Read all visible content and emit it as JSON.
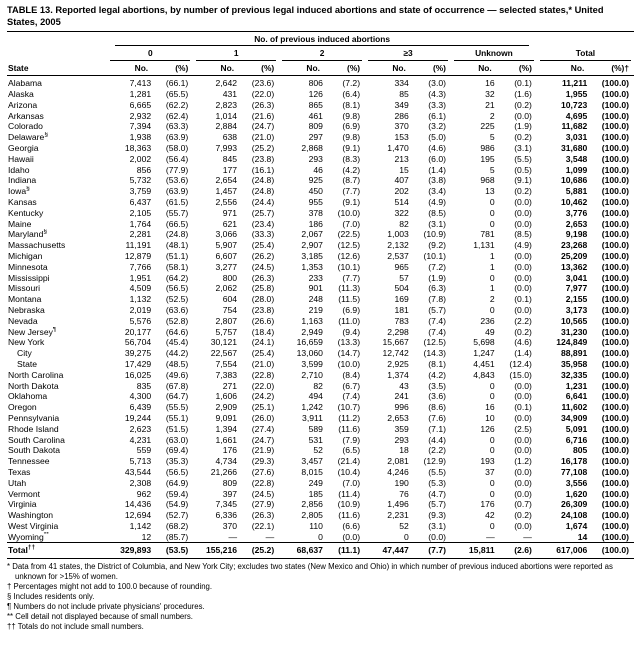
{
  "title": "TABLE 13. Reported legal abortions, by number of previous legal induced abortions and state of occurrence — selected states,* United States, 2005",
  "header": {
    "span_title": "No. of previous induced abortions",
    "state_label": "State",
    "groups": [
      "0",
      "1",
      "2",
      "≥3",
      "Unknown"
    ],
    "total_label": "Total",
    "no_label": "No.",
    "pct_label": "(%)",
    "total_pct_label": "(%)†"
  },
  "rows": [
    {
      "state": "Alabama",
      "cells": [
        "7,413",
        "(66.1)",
        "2,642",
        "(23.6)",
        "806",
        "(7.2)",
        "334",
        "(3.0)",
        "16",
        "(0.1)",
        "11,211",
        "(100.0)"
      ]
    },
    {
      "state": "Alaska",
      "cells": [
        "1,281",
        "(65.5)",
        "431",
        "(22.0)",
        "126",
        "(6.4)",
        "85",
        "(4.3)",
        "32",
        "(1.6)",
        "1,955",
        "(100.0)"
      ]
    },
    {
      "state": "Arizona",
      "cells": [
        "6,665",
        "(62.2)",
        "2,823",
        "(26.3)",
        "865",
        "(8.1)",
        "349",
        "(3.3)",
        "21",
        "(0.2)",
        "10,723",
        "(100.0)"
      ]
    },
    {
      "state": "Arkansas",
      "cells": [
        "2,932",
        "(62.4)",
        "1,014",
        "(21.6)",
        "461",
        "(9.8)",
        "286",
        "(6.1)",
        "2",
        "(0.0)",
        "4,695",
        "(100.0)"
      ]
    },
    {
      "state": "Colorado",
      "cells": [
        "7,394",
        "(63.3)",
        "2,884",
        "(24.7)",
        "809",
        "(6.9)",
        "370",
        "(3.2)",
        "225",
        "(1.9)",
        "11,682",
        "(100.0)"
      ]
    },
    {
      "state": "Delaware",
      "sup": "§",
      "cells": [
        "1,938",
        "(63.9)",
        "638",
        "(21.0)",
        "297",
        "(9.8)",
        "153",
        "(5.0)",
        "5",
        "(0.2)",
        "3,031",
        "(100.0)"
      ]
    },
    {
      "state": "Georgia",
      "cells": [
        "18,363",
        "(58.0)",
        "7,993",
        "(25.2)",
        "2,868",
        "(9.1)",
        "1,470",
        "(4.6)",
        "986",
        "(3.1)",
        "31,680",
        "(100.0)"
      ]
    },
    {
      "state": "Hawaii",
      "cells": [
        "2,002",
        "(56.4)",
        "845",
        "(23.8)",
        "293",
        "(8.3)",
        "213",
        "(6.0)",
        "195",
        "(5.5)",
        "3,548",
        "(100.0)"
      ]
    },
    {
      "state": "Idaho",
      "cells": [
        "856",
        "(77.9)",
        "177",
        "(16.1)",
        "46",
        "(4.2)",
        "15",
        "(1.4)",
        "5",
        "(0.5)",
        "1,099",
        "(100.0)"
      ]
    },
    {
      "state": "Indiana",
      "cells": [
        "5,732",
        "(53.6)",
        "2,654",
        "(24.8)",
        "925",
        "(8.7)",
        "407",
        "(3.8)",
        "968",
        "(9.1)",
        "10,686",
        "(100.0)"
      ]
    },
    {
      "state": "Iowa",
      "sup": "§",
      "cells": [
        "3,759",
        "(63.9)",
        "1,457",
        "(24.8)",
        "450",
        "(7.7)",
        "202",
        "(3.4)",
        "13",
        "(0.2)",
        "5,881",
        "(100.0)"
      ]
    },
    {
      "state": "Kansas",
      "cells": [
        "6,437",
        "(61.5)",
        "2,556",
        "(24.4)",
        "955",
        "(9.1)",
        "514",
        "(4.9)",
        "0",
        "(0.0)",
        "10,462",
        "(100.0)"
      ]
    },
    {
      "state": "Kentucky",
      "cells": [
        "2,105",
        "(55.7)",
        "971",
        "(25.7)",
        "378",
        "(10.0)",
        "322",
        "(8.5)",
        "0",
        "(0.0)",
        "3,776",
        "(100.0)"
      ]
    },
    {
      "state": "Maine",
      "cells": [
        "1,764",
        "(66.5)",
        "621",
        "(23.4)",
        "186",
        "(7.0)",
        "82",
        "(3.1)",
        "0",
        "(0.0)",
        "2,653",
        "(100.0)"
      ]
    },
    {
      "state": "Maryland",
      "sup": "§",
      "cells": [
        "2,281",
        "(24.8)",
        "3,066",
        "(33.3)",
        "2,067",
        "(22.5)",
        "1,003",
        "(10.9)",
        "781",
        "(8.5)",
        "9,198",
        "(100.0)"
      ]
    },
    {
      "state": "Massachusetts",
      "cells": [
        "11,191",
        "(48.1)",
        "5,907",
        "(25.4)",
        "2,907",
        "(12.5)",
        "2,132",
        "(9.2)",
        "1,131",
        "(4.9)",
        "23,268",
        "(100.0)"
      ]
    },
    {
      "state": "Michigan",
      "cells": [
        "12,879",
        "(51.1)",
        "6,607",
        "(26.2)",
        "3,185",
        "(12.6)",
        "2,537",
        "(10.1)",
        "1",
        "(0.0)",
        "25,209",
        "(100.0)"
      ]
    },
    {
      "state": "Minnesota",
      "cells": [
        "7,766",
        "(58.1)",
        "3,277",
        "(24.5)",
        "1,353",
        "(10.1)",
        "965",
        "(7.2)",
        "1",
        "(0.0)",
        "13,362",
        "(100.0)"
      ]
    },
    {
      "state": "Mississippi",
      "cells": [
        "1,951",
        "(64.2)",
        "800",
        "(26.3)",
        "233",
        "(7.7)",
        "57",
        "(1.9)",
        "0",
        "(0.0)",
        "3,041",
        "(100.0)"
      ]
    },
    {
      "state": "Missouri",
      "cells": [
        "4,509",
        "(56.5)",
        "2,062",
        "(25.8)",
        "901",
        "(11.3)",
        "504",
        "(6.3)",
        "1",
        "(0.0)",
        "7,977",
        "(100.0)"
      ]
    },
    {
      "state": "Montana",
      "cells": [
        "1,132",
        "(52.5)",
        "604",
        "(28.0)",
        "248",
        "(11.5)",
        "169",
        "(7.8)",
        "2",
        "(0.1)",
        "2,155",
        "(100.0)"
      ]
    },
    {
      "state": "Nebraska",
      "cells": [
        "2,019",
        "(63.6)",
        "754",
        "(23.8)",
        "219",
        "(6.9)",
        "181",
        "(5.7)",
        "0",
        "(0.0)",
        "3,173",
        "(100.0)"
      ]
    },
    {
      "state": "Nevada",
      "cells": [
        "5,576",
        "(52.8)",
        "2,807",
        "(26.6)",
        "1,163",
        "(11.0)",
        "783",
        "(7.4)",
        "236",
        "(2.2)",
        "10,565",
        "(100.0)"
      ]
    },
    {
      "state": "New Jersey",
      "sup": "¶",
      "cells": [
        "20,177",
        "(64.6)",
        "5,757",
        "(18.4)",
        "2,949",
        "(9.4)",
        "2,298",
        "(7.4)",
        "49",
        "(0.2)",
        "31,230",
        "(100.0)"
      ]
    },
    {
      "state": "New York",
      "cells": [
        "56,704",
        "(45.4)",
        "30,121",
        "(24.1)",
        "16,659",
        "(13.3)",
        "15,667",
        "(12.5)",
        "5,698",
        "(4.6)",
        "124,849",
        "(100.0)"
      ]
    },
    {
      "state": "City",
      "indent": true,
      "cells": [
        "39,275",
        "(44.2)",
        "22,567",
        "(25.4)",
        "13,060",
        "(14.7)",
        "12,742",
        "(14.3)",
        "1,247",
        "(1.4)",
        "88,891",
        "(100.0)"
      ]
    },
    {
      "state": "State",
      "indent": true,
      "cells": [
        "17,429",
        "(48.5)",
        "7,554",
        "(21.0)",
        "3,599",
        "(10.0)",
        "2,925",
        "(8.1)",
        "4,451",
        "(12.4)",
        "35,958",
        "(100.0)"
      ]
    },
    {
      "state": "North Carolina",
      "cells": [
        "16,025",
        "(49.6)",
        "7,383",
        "(22.8)",
        "2,710",
        "(8.4)",
        "1,374",
        "(4.2)",
        "4,843",
        "(15.0)",
        "32,335",
        "(100.0)"
      ]
    },
    {
      "state": "North Dakota",
      "cells": [
        "835",
        "(67.8)",
        "271",
        "(22.0)",
        "82",
        "(6.7)",
        "43",
        "(3.5)",
        "0",
        "(0.0)",
        "1,231",
        "(100.0)"
      ]
    },
    {
      "state": "Oklahoma",
      "cells": [
        "4,300",
        "(64.7)",
        "1,606",
        "(24.2)",
        "494",
        "(7.4)",
        "241",
        "(3.6)",
        "0",
        "(0.0)",
        "6,641",
        "(100.0)"
      ]
    },
    {
      "state": "Oregon",
      "cells": [
        "6,439",
        "(55.5)",
        "2,909",
        "(25.1)",
        "1,242",
        "(10.7)",
        "996",
        "(8.6)",
        "16",
        "(0.1)",
        "11,602",
        "(100.0)"
      ]
    },
    {
      "state": "Pennsylvania",
      "cells": [
        "19,244",
        "(55.1)",
        "9,091",
        "(26.0)",
        "3,911",
        "(11.2)",
        "2,653",
        "(7.6)",
        "10",
        "(0.0)",
        "34,909",
        "(100.0)"
      ]
    },
    {
      "state": "Rhode Island",
      "cells": [
        "2,623",
        "(51.5)",
        "1,394",
        "(27.4)",
        "589",
        "(11.6)",
        "359",
        "(7.1)",
        "126",
        "(2.5)",
        "5,091",
        "(100.0)"
      ]
    },
    {
      "state": "South Carolina",
      "cells": [
        "4,231",
        "(63.0)",
        "1,661",
        "(24.7)",
        "531",
        "(7.9)",
        "293",
        "(4.4)",
        "0",
        "(0.0)",
        "6,716",
        "(100.0)"
      ]
    },
    {
      "state": "South Dakota",
      "cells": [
        "559",
        "(69.4)",
        "176",
        "(21.9)",
        "52",
        "(6.5)",
        "18",
        "(2.2)",
        "0",
        "(0.0)",
        "805",
        "(100.0)"
      ]
    },
    {
      "state": "Tennessee",
      "cells": [
        "5,713",
        "(35.3)",
        "4,734",
        "(29.3)",
        "3,457",
        "(21.4)",
        "2,081",
        "(12.9)",
        "193",
        "(1.2)",
        "16,178",
        "(100.0)"
      ]
    },
    {
      "state": "Texas",
      "cells": [
        "43,544",
        "(56.5)",
        "21,266",
        "(27.6)",
        "8,015",
        "(10.4)",
        "4,246",
        "(5.5)",
        "37",
        "(0.0)",
        "77,108",
        "(100.0)"
      ]
    },
    {
      "state": "Utah",
      "cells": [
        "2,308",
        "(64.9)",
        "809",
        "(22.8)",
        "249",
        "(7.0)",
        "190",
        "(5.3)",
        "0",
        "(0.0)",
        "3,556",
        "(100.0)"
      ]
    },
    {
      "state": "Vermont",
      "cells": [
        "962",
        "(59.4)",
        "397",
        "(24.5)",
        "185",
        "(11.4)",
        "76",
        "(4.7)",
        "0",
        "(0.0)",
        "1,620",
        "(100.0)"
      ]
    },
    {
      "state": "Virginia",
      "cells": [
        "14,436",
        "(54.9)",
        "7,345",
        "(27.9)",
        "2,856",
        "(10.9)",
        "1,496",
        "(5.7)",
        "176",
        "(0.7)",
        "26,309",
        "(100.0)"
      ]
    },
    {
      "state": "Washington",
      "cells": [
        "12,694",
        "(52.7)",
        "6,336",
        "(26.3)",
        "2,805",
        "(11.6)",
        "2,231",
        "(9.3)",
        "42",
        "(0.2)",
        "24,108",
        "(100.0)"
      ]
    },
    {
      "state": "West Virginia",
      "cells": [
        "1,142",
        "(68.2)",
        "370",
        "(22.1)",
        "110",
        "(6.6)",
        "52",
        "(3.1)",
        "0",
        "(0.0)",
        "1,674",
        "(100.0)"
      ]
    },
    {
      "state": "Wyoming",
      "sup": "**",
      "cells": [
        "12",
        "(85.7)",
        "—",
        "—",
        "0",
        "(0.0)",
        "0",
        "(0.0)",
        "—",
        "—",
        "14",
        "(100.0)"
      ]
    }
  ],
  "total_row": {
    "state": "Total",
    "sup": "††",
    "cells": [
      "329,893",
      "(53.5)",
      "155,216",
      "(25.2)",
      "68,637",
      "(11.1)",
      "47,447",
      "(7.7)",
      "15,811",
      "(2.6)",
      "617,006",
      "(100.0)"
    ]
  },
  "footnotes": [
    "* Data from 41 states, the District of Columbia, and New York City; excludes two states (New Mexico and Ohio) in which number of previous induced abortions were reported as unknown for >15% of women.",
    "† Percentages might not add to 100.0 because of rounding.",
    "§ Includes residents only.",
    "¶ Numbers do not include private physicians' procedures.",
    "** Cell detail not displayed because of small numbers.",
    "†† Totals do not include small numbers."
  ]
}
